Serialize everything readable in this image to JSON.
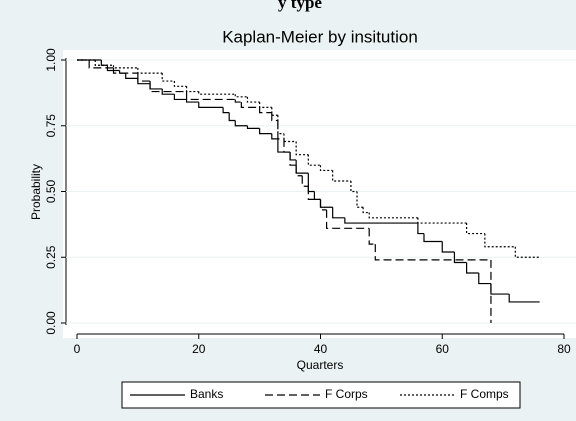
{
  "page_heading": "y type",
  "chart_data": {
    "type": "step",
    "title": "Kaplan-Meier by insitution",
    "x_label": "Quarters",
    "y_label": "Probability",
    "xlim": [
      0,
      80
    ],
    "xticks": [
      0,
      20,
      40,
      60,
      80
    ],
    "ylim": [
      0,
      1
    ],
    "yticks": [
      {
        "value": 0,
        "label": "0.00"
      },
      {
        "value": 0.25,
        "label": "0.25"
      },
      {
        "value": 0.5,
        "label": "0.50"
      },
      {
        "value": 0.75,
        "label": "0.75"
      },
      {
        "value": 1,
        "label": "1.00"
      }
    ],
    "grid": true,
    "legend": "bottom",
    "series": [
      {
        "name": "Banks",
        "color": "#000000",
        "dash": "solid",
        "x": [
          0,
          4,
          5,
          7,
          8,
          10,
          12,
          14,
          16,
          18,
          20,
          24,
          25,
          26,
          28,
          30,
          32,
          33,
          35,
          36,
          38,
          39,
          40,
          42,
          44,
          56,
          57,
          60,
          62,
          64,
          66,
          68,
          71,
          76
        ],
        "values": [
          1,
          0.98,
          0.96,
          0.95,
          0.93,
          0.91,
          0.89,
          0.87,
          0.85,
          0.84,
          0.82,
          0.8,
          0.77,
          0.75,
          0.74,
          0.72,
          0.7,
          0.65,
          0.62,
          0.57,
          0.5,
          0.47,
          0.44,
          0.4,
          0.38,
          0.34,
          0.31,
          0.27,
          0.23,
          0.19,
          0.15,
          0.11,
          0.08,
          0.08
        ]
      },
      {
        "name": "F Corps",
        "color": "#000000",
        "dash": "dashed",
        "x": [
          0,
          2,
          6,
          10,
          12,
          18,
          26,
          27,
          30,
          32,
          33,
          34,
          35,
          36,
          37,
          38,
          40,
          41,
          48,
          49,
          68,
          68
        ],
        "values": [
          1,
          0.97,
          0.95,
          0.92,
          0.88,
          0.85,
          0.84,
          0.82,
          0.8,
          0.77,
          0.7,
          0.65,
          0.6,
          0.56,
          0.52,
          0.47,
          0.43,
          0.36,
          0.3,
          0.24,
          0.24,
          0
        ]
      },
      {
        "name": "F Comps",
        "color": "#000000",
        "dash": "dotted",
        "x": [
          0,
          3,
          6,
          10,
          14,
          16,
          18,
          20,
          26,
          28,
          30,
          32,
          33,
          34,
          36,
          38,
          40,
          42,
          45,
          46,
          47,
          48,
          56,
          64,
          67,
          72,
          76
        ],
        "values": [
          1,
          0.98,
          0.97,
          0.95,
          0.92,
          0.9,
          0.88,
          0.87,
          0.86,
          0.84,
          0.82,
          0.79,
          0.72,
          0.69,
          0.64,
          0.6,
          0.58,
          0.54,
          0.5,
          0.44,
          0.42,
          0.4,
          0.38,
          0.34,
          0.29,
          0.25,
          0.25
        ]
      }
    ]
  }
}
